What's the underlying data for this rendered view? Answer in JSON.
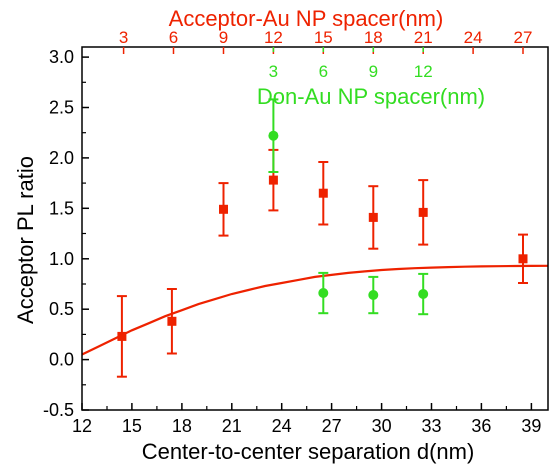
{
  "chart_data": {
    "type": "scatter",
    "xlabel": "Center-to-center separation d(nm)",
    "ylabel": "Acceptor PL ratio",
    "top_axis_label": "Acceptor-Au NP spacer(nm)",
    "inner_axis_label": "Don-Au NP spacer(nm)",
    "xlim": [
      12,
      40
    ],
    "ylim": [
      -0.5,
      3.1
    ],
    "x_ticks": [
      {
        "value": 12,
        "label": "12"
      },
      {
        "value": 15,
        "label": "15"
      },
      {
        "value": 18,
        "label": "18"
      },
      {
        "value": 21,
        "label": "21"
      },
      {
        "value": 24,
        "label": "24"
      },
      {
        "value": 27,
        "label": "27"
      },
      {
        "value": 30,
        "label": "30"
      },
      {
        "value": 33,
        "label": "33"
      },
      {
        "value": 36,
        "label": "36"
      },
      {
        "value": 39,
        "label": "39"
      }
    ],
    "y_ticks": [
      {
        "value": -0.5,
        "label": "-0.5"
      },
      {
        "value": 0.0,
        "label": "0.0"
      },
      {
        "value": 0.5,
        "label": "0.5"
      },
      {
        "value": 1.0,
        "label": "1.0"
      },
      {
        "value": 1.5,
        "label": "1.5"
      },
      {
        "value": 2.0,
        "label": "2.0"
      },
      {
        "value": 2.5,
        "label": "2.5"
      },
      {
        "value": 3.0,
        "label": "3.0"
      }
    ],
    "top_ticks": [
      {
        "value": 14.5,
        "label": "3"
      },
      {
        "value": 17.5,
        "label": "6"
      },
      {
        "value": 20.5,
        "label": "9"
      },
      {
        "value": 23.5,
        "label": "12"
      },
      {
        "value": 26.5,
        "label": "15"
      },
      {
        "value": 29.5,
        "label": "18"
      },
      {
        "value": 32.5,
        "label": "21"
      },
      {
        "value": 35.5,
        "label": "24"
      },
      {
        "value": 38.5,
        "label": "27"
      }
    ],
    "inner_ticks": [
      {
        "value": 23.5,
        "label": "3"
      },
      {
        "value": 26.5,
        "label": "6"
      },
      {
        "value": 29.5,
        "label": "9"
      },
      {
        "value": 32.5,
        "label": "12"
      }
    ],
    "series": [
      {
        "color": "#ee2200",
        "marker": "square",
        "points": [
          {
            "x": 14.4,
            "y": 0.23,
            "err": 0.4
          },
          {
            "x": 17.4,
            "y": 0.38,
            "err": 0.32
          },
          {
            "x": 20.5,
            "y": 1.49,
            "err": 0.26
          },
          {
            "x": 23.5,
            "y": 1.78,
            "err": 0.3
          },
          {
            "x": 26.5,
            "y": 1.65,
            "err": 0.31
          },
          {
            "x": 29.5,
            "y": 1.41,
            "err": 0.31
          },
          {
            "x": 32.5,
            "y": 1.46,
            "err": 0.32
          },
          {
            "x": 38.5,
            "y": 1.0,
            "err": 0.24
          }
        ]
      },
      {
        "color": "#33dd22",
        "marker": "circle",
        "points": [
          {
            "x": 23.5,
            "y": 2.22,
            "err": 0.36
          },
          {
            "x": 26.5,
            "y": 0.66,
            "err": 0.2
          },
          {
            "x": 29.5,
            "y": 0.64,
            "err": 0.18
          },
          {
            "x": 32.5,
            "y": 0.65,
            "err": 0.2
          }
        ]
      }
    ],
    "fit_curve": {
      "color": "#ee2200",
      "x": [
        12,
        13,
        14,
        15,
        16,
        17,
        18,
        19,
        20,
        21,
        22,
        23,
        24,
        25,
        26,
        27,
        28,
        29,
        30,
        31,
        32,
        33,
        34,
        35,
        36,
        37,
        38,
        39,
        40
      ],
      "y": [
        0.05,
        0.13,
        0.21,
        0.29,
        0.36,
        0.43,
        0.49,
        0.55,
        0.6,
        0.65,
        0.69,
        0.73,
        0.76,
        0.79,
        0.82,
        0.84,
        0.86,
        0.875,
        0.888,
        0.898,
        0.906,
        0.912,
        0.917,
        0.921,
        0.924,
        0.926,
        0.928,
        0.929,
        0.93
      ]
    },
    "grid": false,
    "colors": {
      "axis": "#000000",
      "top_axis": "#ee2200",
      "inner_axis": "#33dd22"
    }
  }
}
